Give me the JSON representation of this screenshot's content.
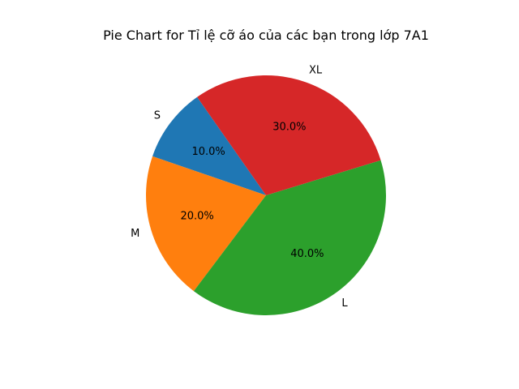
{
  "chart_data": {
    "type": "pie",
    "title": "Pie Chart for Tỉ lệ cỡ áo của các bạn trong lớp 7A1",
    "categories": [
      "S",
      "M",
      "L",
      "XL"
    ],
    "values": [
      10,
      20,
      40,
      30
    ],
    "percent_labels": [
      "10.0%",
      "20.0%",
      "40.0%",
      "30.0%"
    ],
    "colors": [
      "#1f77b4",
      "#ff7f0e",
      "#2ca02c",
      "#d62728"
    ],
    "start_angle_deg": 125,
    "direction": "counterclockwise",
    "legend": "none"
  }
}
